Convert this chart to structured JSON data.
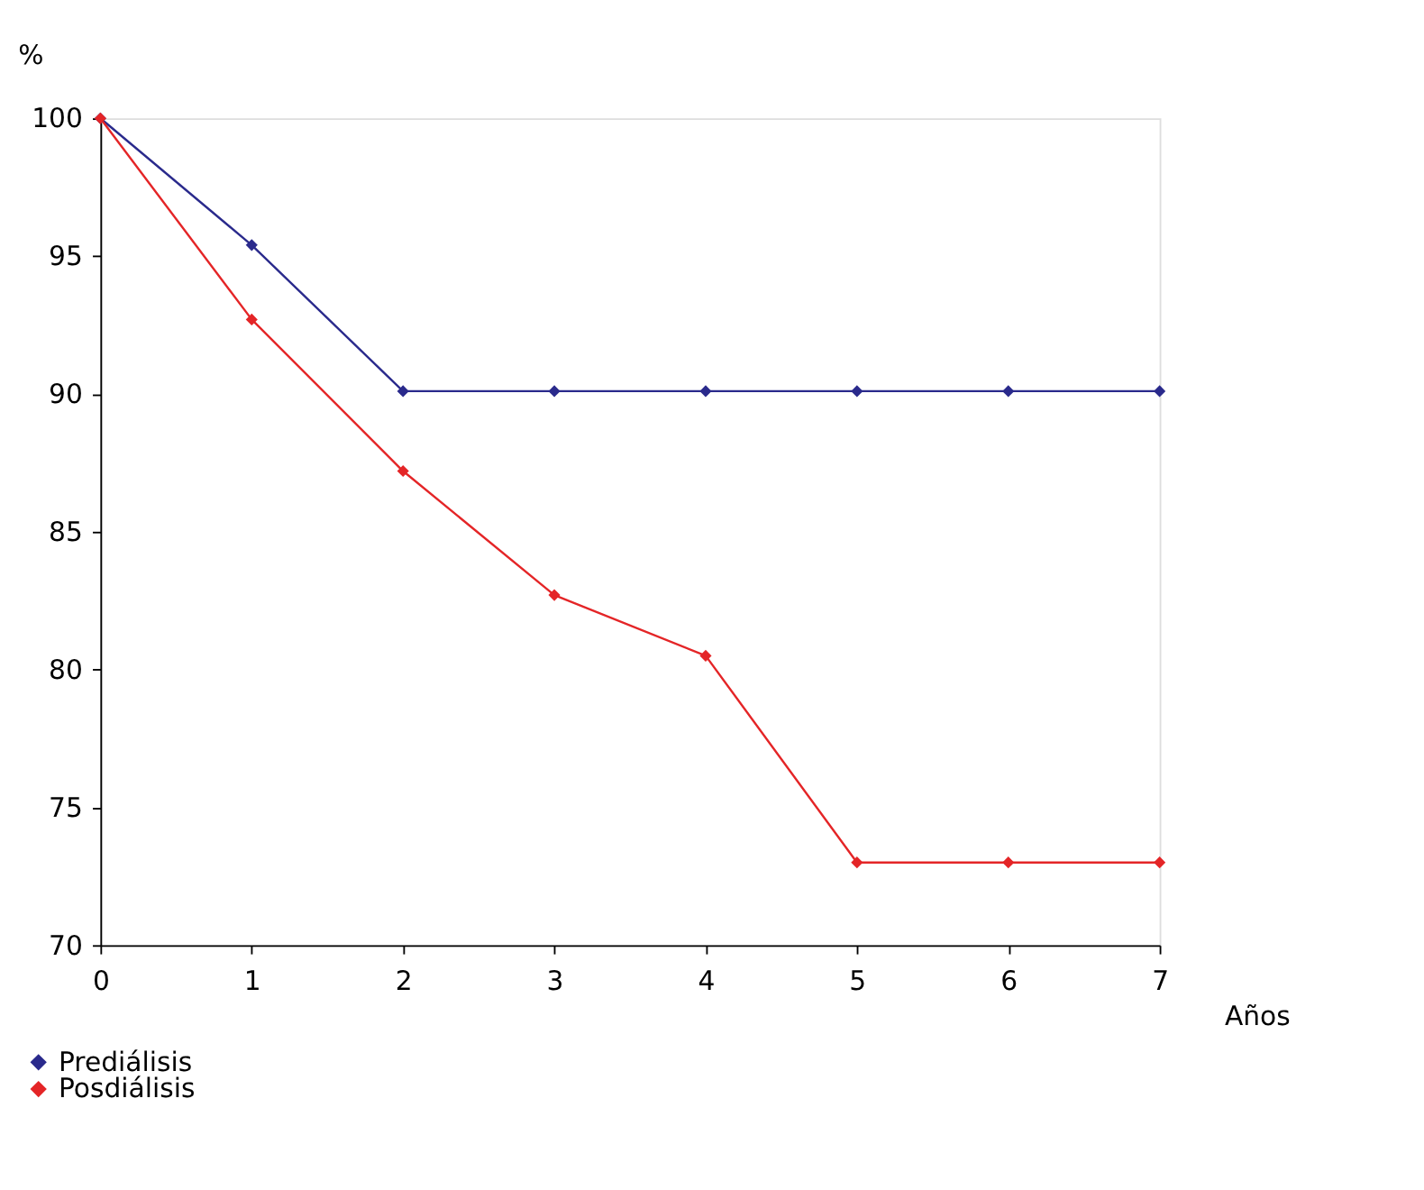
{
  "chart_data": {
    "type": "line",
    "xlabel": "Años",
    "ylabel": "%",
    "x": [
      0,
      1,
      2,
      3,
      4,
      5,
      6,
      7
    ],
    "series": [
      {
        "name": "Prediálisis",
        "color": "#2a2a8c",
        "values": [
          100,
          95.4,
          90.1,
          90.1,
          90.1,
          90.1,
          90.1,
          90.1
        ]
      },
      {
        "name": "Posdiálisis",
        "color": "#e42527",
        "values": [
          100,
          92.7,
          87.2,
          82.7,
          80.5,
          73.0,
          73.0,
          73.0
        ]
      }
    ],
    "xlim": [
      0,
      7
    ],
    "xticks": [
      0,
      1,
      2,
      3,
      4,
      5,
      6,
      7
    ],
    "ylim": [
      70,
      100
    ],
    "yticks": [
      70,
      75,
      80,
      85,
      90,
      95,
      100
    ],
    "grid": false,
    "legend": "bottom left",
    "marker": "diamond",
    "line_style": "solid"
  }
}
